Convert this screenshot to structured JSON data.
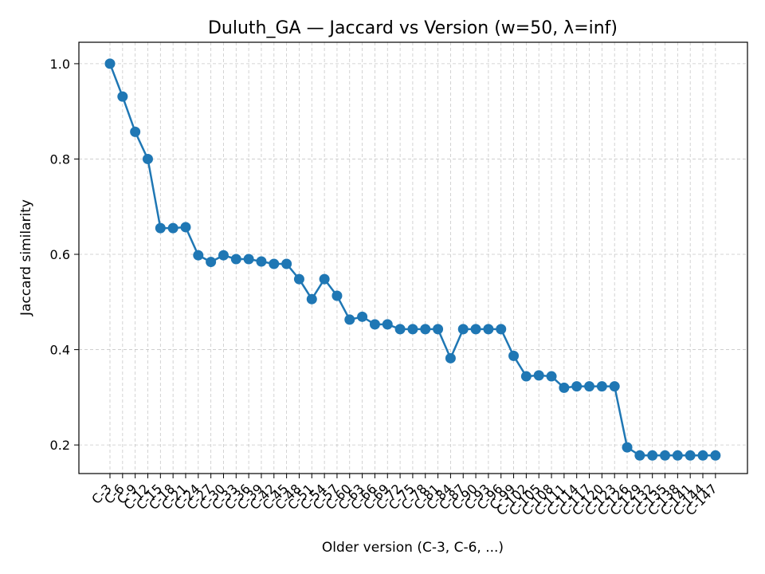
{
  "chart_data": {
    "type": "line",
    "title": "Duluth_GA — Jaccard vs Version (w=50, λ=inf)",
    "xlabel": "Older version (C-3, C-6, ...)",
    "ylabel": "Jaccard similarity",
    "ylim": [
      0.14,
      1.045
    ],
    "yticks": [
      0.2,
      0.4,
      0.6,
      0.8,
      1.0
    ],
    "ytick_labels": [
      "0.2",
      "0.4",
      "0.6",
      "0.8",
      "1.0"
    ],
    "grid": true,
    "grid_style": "dashed",
    "line_color": "#1f77b4",
    "categories": [
      "C-3",
      "C-6",
      "C-9",
      "C-12",
      "C-15",
      "C-18",
      "C-21",
      "C-24",
      "C-27",
      "C-30",
      "C-33",
      "C-36",
      "C-39",
      "C-42",
      "C-45",
      "C-48",
      "C-51",
      "C-54",
      "C-57",
      "C-60",
      "C-63",
      "C-66",
      "C-69",
      "C-72",
      "C-75",
      "C-78",
      "C-81",
      "C-84",
      "C-87",
      "C-90",
      "C-93",
      "C-96",
      "C-99",
      "C-102",
      "C-105",
      "C-108",
      "C-111",
      "C-114",
      "C-117",
      "C-120",
      "C-123",
      "C-126",
      "C-129",
      "C-132",
      "C-135",
      "C-138",
      "C-141",
      "C-144",
      "C-147"
    ],
    "values": [
      1.0,
      0.931,
      0.857,
      0.8,
      0.655,
      0.655,
      0.657,
      0.598,
      0.584,
      0.598,
      0.59,
      0.59,
      0.585,
      0.58,
      0.58,
      0.548,
      0.506,
      0.548,
      0.513,
      0.463,
      0.469,
      0.453,
      0.453,
      0.443,
      0.443,
      0.443,
      0.443,
      0.382,
      0.443,
      0.443,
      0.443,
      0.443,
      0.387,
      0.344,
      0.346,
      0.344,
      0.32,
      0.323,
      0.323,
      0.323,
      0.323,
      0.195,
      0.178,
      0.178,
      0.178,
      0.178,
      0.178,
      0.178,
      0.178
    ]
  }
}
